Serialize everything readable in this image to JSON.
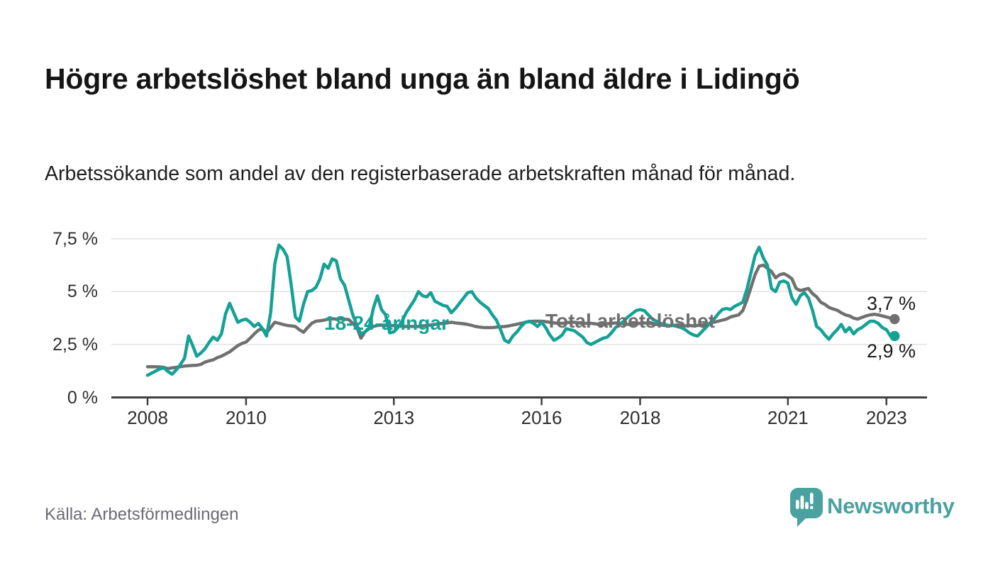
{
  "header": {
    "title": "Högre arbetslöshet bland unga än bland äldre i Lidingö",
    "subtitle": "Arbetssökande som andel av den registerbaserade arbetskraften månad för månad."
  },
  "footer": {
    "source": "Källa: Arbetsförmedlingen",
    "brand": "Newsworthy",
    "brand_color": "#4aa2a0",
    "brand_icon": "newsworthy-chart-bubble-icon"
  },
  "chart_data": {
    "type": "line",
    "title": "Högre arbetslöshet bland unga än bland äldre i Lidingö",
    "xlabel": "",
    "ylabel": "",
    "x_start": 2008.0,
    "x_step_months": 1,
    "x_end": 2023.17,
    "ylim": [
      0,
      7.9
    ],
    "grid": true,
    "grid_color": "#e2e2e2",
    "axis_color": "#3f3f3f",
    "legend_position": "inline-labels",
    "yticks": [
      {
        "value": 0,
        "label": "0 %"
      },
      {
        "value": 2.5,
        "label": "2,5 %"
      },
      {
        "value": 5,
        "label": "5 %"
      },
      {
        "value": 7.5,
        "label": "7,5 %"
      }
    ],
    "xticks": [
      {
        "value": 2008,
        "label": "2008"
      },
      {
        "value": 2010,
        "label": "2010"
      },
      {
        "value": 2013,
        "label": "2013"
      },
      {
        "value": 2016,
        "label": "2016"
      },
      {
        "value": 2018,
        "label": "2018"
      },
      {
        "value": 2021,
        "label": "2021"
      },
      {
        "value": 2023,
        "label": "2023"
      }
    ],
    "series": [
      {
        "name": "18-24-åringar",
        "color": "#15a195",
        "end_label": "2,9 %",
        "end_value": 2.9,
        "values": [
          1.05,
          1.15,
          1.25,
          1.35,
          1.4,
          1.22,
          1.1,
          1.3,
          1.55,
          1.85,
          2.9,
          2.45,
          1.95,
          2.1,
          2.3,
          2.6,
          2.85,
          2.7,
          3.0,
          3.95,
          4.45,
          4.0,
          3.55,
          3.65,
          3.7,
          3.55,
          3.35,
          3.5,
          3.25,
          2.9,
          4.0,
          6.3,
          7.2,
          7.0,
          6.65,
          5.3,
          3.8,
          3.6,
          4.4,
          5.0,
          5.05,
          5.2,
          5.6,
          6.3,
          6.1,
          6.55,
          6.45,
          5.6,
          5.3,
          4.6,
          3.9,
          3.4,
          3.0,
          3.1,
          3.3,
          4.2,
          4.8,
          4.15,
          3.9,
          3.05,
          3.1,
          3.3,
          3.6,
          4.0,
          4.3,
          4.6,
          5.0,
          4.8,
          4.75,
          4.95,
          4.55,
          4.45,
          4.35,
          4.3,
          4.0,
          4.2,
          4.45,
          4.7,
          4.95,
          5.0,
          4.7,
          4.5,
          4.35,
          4.2,
          3.9,
          3.65,
          3.2,
          2.7,
          2.6,
          2.9,
          3.1,
          3.35,
          3.55,
          3.6,
          3.5,
          3.35,
          3.55,
          3.3,
          2.95,
          2.7,
          2.8,
          2.95,
          3.25,
          3.2,
          3.15,
          3.0,
          2.85,
          2.6,
          2.5,
          2.6,
          2.7,
          2.8,
          2.85,
          3.05,
          3.3,
          3.45,
          3.6,
          3.8,
          3.95,
          4.1,
          4.15,
          4.1,
          3.9,
          3.7,
          3.6,
          3.5,
          3.45,
          3.4,
          3.4,
          3.35,
          3.3,
          3.2,
          3.05,
          2.95,
          2.9,
          3.1,
          3.3,
          3.5,
          3.7,
          3.95,
          4.15,
          4.2,
          4.15,
          4.3,
          4.4,
          4.5,
          5.1,
          5.9,
          6.7,
          7.1,
          6.6,
          6.25,
          5.15,
          5.0,
          5.45,
          5.5,
          5.4,
          4.7,
          4.4,
          4.8,
          4.95,
          4.7,
          4.1,
          3.35,
          3.2,
          2.95,
          2.75,
          3.0,
          3.2,
          3.45,
          3.1,
          3.3,
          3.0,
          3.2,
          3.3,
          3.45,
          3.6,
          3.6,
          3.5,
          3.3,
          3.2,
          2.9,
          2.9
        ]
      },
      {
        "name": "Total arbetslöshet",
        "color": "#707070",
        "end_label": "3,7 %",
        "end_value": 3.7,
        "values": [
          1.45,
          1.45,
          1.45,
          1.44,
          1.42,
          1.36,
          1.4,
          1.42,
          1.45,
          1.48,
          1.5,
          1.51,
          1.52,
          1.56,
          1.67,
          1.73,
          1.78,
          1.88,
          1.95,
          2.05,
          2.15,
          2.3,
          2.45,
          2.55,
          2.62,
          2.8,
          3.0,
          3.18,
          3.25,
          3.05,
          3.3,
          3.55,
          3.5,
          3.45,
          3.4,
          3.38,
          3.35,
          3.2,
          3.08,
          3.3,
          3.5,
          3.6,
          3.62,
          3.65,
          3.7,
          3.72,
          3.7,
          3.72,
          3.7,
          3.68,
          3.5,
          3.3,
          2.8,
          3.1,
          3.25,
          3.35,
          3.4,
          3.42,
          3.4,
          3.38,
          3.4,
          3.38,
          3.36,
          3.35,
          3.35,
          3.36,
          3.35,
          3.38,
          3.4,
          3.42,
          3.45,
          3.48,
          3.5,
          3.52,
          3.55,
          3.52,
          3.5,
          3.48,
          3.45,
          3.4,
          3.35,
          3.32,
          3.3,
          3.3,
          3.3,
          3.32,
          3.34,
          3.35,
          3.38,
          3.42,
          3.46,
          3.5,
          3.55,
          3.58,
          3.6,
          3.6,
          3.6,
          3.58,
          3.55,
          3.52,
          3.5,
          3.5,
          3.52,
          3.55,
          3.55,
          3.52,
          3.5,
          3.5,
          3.5,
          3.48,
          3.45,
          3.45,
          3.48,
          3.5,
          3.52,
          3.5,
          3.48,
          3.45,
          3.45,
          3.48,
          3.5,
          3.52,
          3.5,
          3.48,
          3.45,
          3.42,
          3.4,
          3.38,
          3.4,
          3.42,
          3.4,
          3.38,
          3.4,
          3.38,
          3.4,
          3.42,
          3.45,
          3.5,
          3.55,
          3.6,
          3.65,
          3.7,
          3.8,
          3.85,
          3.9,
          4.1,
          4.6,
          5.2,
          5.8,
          6.2,
          6.25,
          6.1,
          5.95,
          5.65,
          5.8,
          5.85,
          5.75,
          5.6,
          5.15,
          5.05,
          5.1,
          5.15,
          4.9,
          4.75,
          4.5,
          4.4,
          4.25,
          4.18,
          4.12,
          4.0,
          3.9,
          3.85,
          3.75,
          3.7,
          3.78,
          3.85,
          3.9,
          3.93,
          3.9,
          3.85,
          3.8,
          3.75,
          3.7
        ]
      }
    ]
  }
}
